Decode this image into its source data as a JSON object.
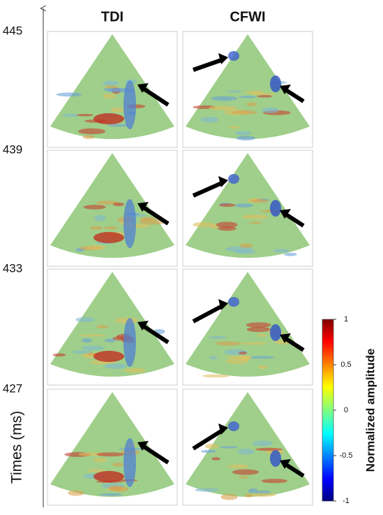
{
  "columns": [
    "TDI",
    "CFWI"
  ],
  "time_axis": {
    "label": "Times (ms)",
    "ticks": [
      445,
      439,
      433,
      427
    ]
  },
  "colorbar": {
    "label": "Normalized amplitude",
    "lim": [
      -1,
      1
    ],
    "ticks": [
      1,
      0.5,
      0,
      -0.5,
      -1
    ]
  }
}
